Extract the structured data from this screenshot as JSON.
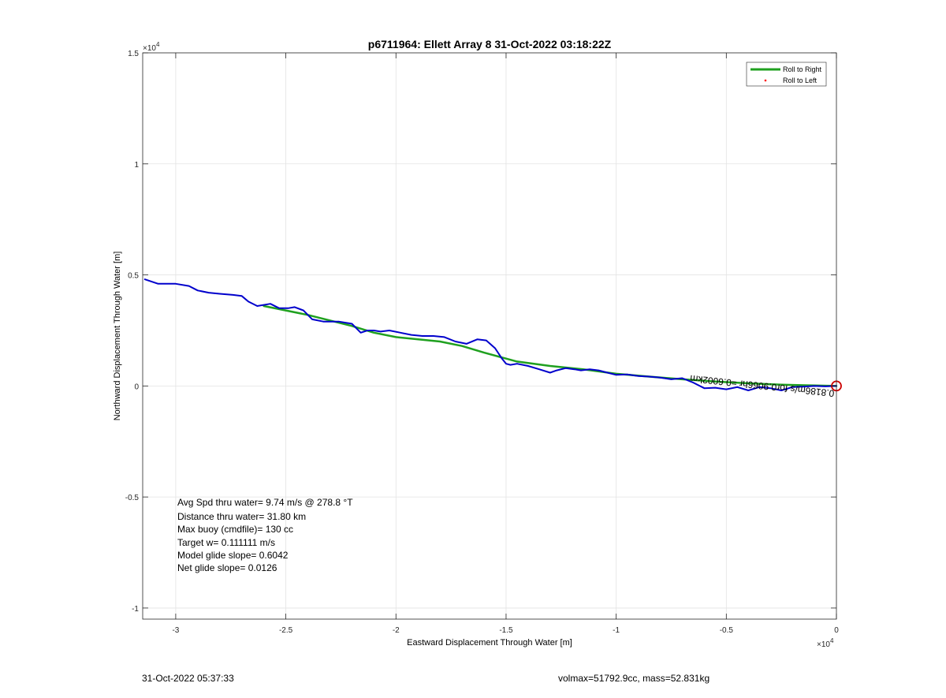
{
  "chart_data": {
    "type": "line",
    "title": "p6711964: Ellett Array 8 31-Oct-2022 03:18:22Z",
    "xlabel": "Eastward Displacement Through Water [m]",
    "ylabel": "Northward Displacement Through Water [m]",
    "x_exponent_label": "×10",
    "x_exponent_power": "4",
    "y_exponent_label": "×10",
    "y_exponent_power": "4",
    "xlim": [
      -31500,
      0
    ],
    "ylim": [
      -10500,
      15000
    ],
    "xticks": [
      -30000,
      -25000,
      -20000,
      -15000,
      -10000,
      -5000,
      0
    ],
    "xtick_labels": [
      "-3",
      "-2.5",
      "-2",
      "-1.5",
      "-1",
      "-0.5",
      "0"
    ],
    "yticks": [
      -10000,
      -5000,
      0,
      5000,
      10000,
      15000
    ],
    "ytick_labels": [
      "-1",
      "-0.5",
      "0",
      "0.5",
      "1",
      "1.5"
    ],
    "grid": true,
    "legend_position": "top-right",
    "series": [
      {
        "name": "Roll to Right",
        "color": "#1fa01f",
        "style": "line",
        "x": [
          -26000,
          -24000,
          -22000,
          -21000,
          -20000,
          -18000,
          -17000,
          -16000,
          -14500,
          -13000,
          -11500,
          -10000,
          -8500,
          -7000,
          -5500,
          -4000,
          -2500,
          -1000,
          0
        ],
        "y": [
          3600,
          3200,
          2700,
          2400,
          2200,
          2000,
          1800,
          1500,
          1100,
          900,
          750,
          550,
          420,
          300,
          200,
          120,
          60,
          20,
          0
        ]
      },
      {
        "name": "Roll to Left",
        "color": "#ff0000",
        "style": "marker",
        "x": [],
        "y": []
      },
      {
        "name": "",
        "color": "#0000cc",
        "style": "line",
        "x": [
          -31400,
          -30800,
          -30000,
          -29400,
          -29000,
          -28500,
          -28000,
          -27400,
          -27000,
          -26700,
          -26300,
          -25700,
          -25300,
          -24900,
          -24600,
          -24200,
          -23800,
          -23300,
          -22600,
          -22000,
          -21600,
          -21300,
          -21000,
          -20700,
          -20300,
          -19800,
          -19300,
          -18800,
          -18300,
          -17800,
          -17300,
          -16800,
          -16300,
          -15900,
          -15500,
          -15200,
          -15000,
          -14800,
          -14500,
          -14000,
          -13500,
          -13000,
          -12700,
          -12300,
          -11900,
          -11600,
          -11200,
          -10800,
          -10400,
          -10000,
          -9500,
          -9000,
          -8500,
          -8000,
          -7500,
          -7000,
          -6500,
          -6000,
          -5500,
          -5000,
          -4500,
          -4000,
          -3500,
          -3000,
          -2500,
          -2000,
          -1500,
          -1000,
          -500,
          0
        ],
        "y": [
          4800,
          4600,
          4600,
          4500,
          4300,
          4200,
          4150,
          4100,
          4050,
          3800,
          3600,
          3700,
          3500,
          3500,
          3550,
          3400,
          3000,
          2900,
          2900,
          2800,
          2400,
          2500,
          2500,
          2450,
          2500,
          2400,
          2300,
          2250,
          2250,
          2200,
          2000,
          1900,
          2100,
          2050,
          1700,
          1250,
          1000,
          950,
          1000,
          900,
          750,
          600,
          700,
          800,
          750,
          700,
          750,
          700,
          600,
          500,
          520,
          450,
          420,
          380,
          300,
          350,
          150,
          -100,
          -80,
          -150,
          -50,
          -200,
          -50,
          -100,
          -200,
          -50,
          -30,
          0,
          -20,
          0
        ]
      }
    ],
    "end_marker": {
      "x": 0,
      "y": 0,
      "color": "#cc0000"
    },
    "rotated_annotation": "0.8186m/s for0.9066hr =0.6002km",
    "annotations": [
      "Avg Spd thru water=  9.74 m/s @ 278.8 °T",
      "Distance thru water= 31.80 km",
      "Max buoy (cmdfile)= 130 cc",
      "Target w= 0.111111 m/s",
      "Model glide slope= 0.6042",
      "Net glide slope= 0.0126"
    ]
  },
  "footer": {
    "timestamp": "31-Oct-2022 05:37:33",
    "summary": "volmax=51792.9cc, mass=52.831kg"
  }
}
